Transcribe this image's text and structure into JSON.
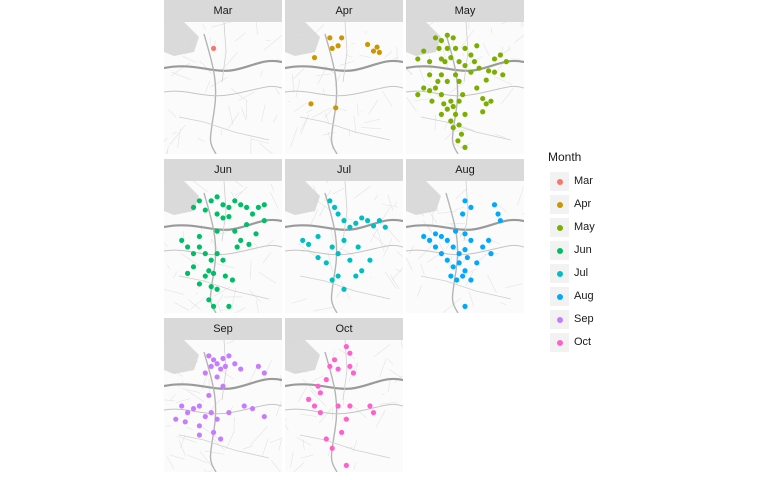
{
  "chart_data": {
    "type": "scatter",
    "facet_variable": "Month",
    "legend": {
      "title": "Month",
      "position": "right",
      "items": [
        {
          "label": "Mar",
          "color": "#F8766D"
        },
        {
          "label": "Apr",
          "color": "#CD9600"
        },
        {
          "label": "May",
          "color": "#7CAE00"
        },
        {
          "label": "Jun",
          "color": "#00BE67"
        },
        {
          "label": "Jul",
          "color": "#00BFC4"
        },
        {
          "label": "Aug",
          "color": "#00A9FF"
        },
        {
          "label": "Sep",
          "color": "#C77CFF"
        },
        {
          "label": "Oct",
          "color": "#FF61CC"
        }
      ]
    },
    "basemap": "grayscale street map",
    "facets": [
      {
        "label": "Mar",
        "color": "#F8766D",
        "points": [
          [
            0.42,
            0.2
          ]
        ]
      },
      {
        "label": "Apr",
        "color": "#CD9600",
        "points": [
          [
            0.38,
            0.12
          ],
          [
            0.48,
            0.12
          ],
          [
            0.4,
            0.2
          ],
          [
            0.45,
            0.18
          ],
          [
            0.7,
            0.17
          ],
          [
            0.75,
            0.22
          ],
          [
            0.78,
            0.19
          ],
          [
            0.8,
            0.23
          ],
          [
            0.25,
            0.27
          ],
          [
            0.22,
            0.62
          ],
          [
            0.43,
            0.65
          ]
        ]
      },
      {
        "label": "May",
        "color": "#7CAE00",
        "points": [
          [
            0.25,
            0.12
          ],
          [
            0.3,
            0.14
          ],
          [
            0.35,
            0.1
          ],
          [
            0.4,
            0.12
          ],
          [
            0.28,
            0.2
          ],
          [
            0.35,
            0.2
          ],
          [
            0.42,
            0.2
          ],
          [
            0.3,
            0.28
          ],
          [
            0.38,
            0.27
          ],
          [
            0.2,
            0.3
          ],
          [
            0.1,
            0.28
          ],
          [
            0.45,
            0.3
          ],
          [
            0.5,
            0.33
          ],
          [
            0.55,
            0.38
          ],
          [
            0.62,
            0.35
          ],
          [
            0.7,
            0.37
          ],
          [
            0.75,
            0.38
          ],
          [
            0.68,
            0.44
          ],
          [
            0.82,
            0.4
          ],
          [
            0.85,
            0.3
          ],
          [
            0.8,
            0.25
          ],
          [
            0.75,
            0.28
          ],
          [
            0.5,
            0.2
          ],
          [
            0.55,
            0.25
          ],
          [
            0.6,
            0.18
          ],
          [
            0.15,
            0.5
          ],
          [
            0.2,
            0.52
          ],
          [
            0.25,
            0.5
          ],
          [
            0.3,
            0.55
          ],
          [
            0.32,
            0.62
          ],
          [
            0.35,
            0.66
          ],
          [
            0.4,
            0.64
          ],
          [
            0.42,
            0.7
          ],
          [
            0.38,
            0.75
          ],
          [
            0.4,
            0.8
          ],
          [
            0.45,
            0.78
          ],
          [
            0.47,
            0.85
          ],
          [
            0.44,
            0.9
          ],
          [
            0.5,
            0.95
          ],
          [
            0.5,
            0.7
          ],
          [
            0.3,
            0.7
          ],
          [
            0.22,
            0.6
          ],
          [
            0.38,
            0.6
          ],
          [
            0.45,
            0.6
          ],
          [
            0.1,
            0.55
          ],
          [
            0.35,
            0.45
          ],
          [
            0.45,
            0.45
          ],
          [
            0.6,
            0.5
          ],
          [
            0.65,
            0.58
          ],
          [
            0.65,
            0.68
          ],
          [
            0.68,
            0.62
          ],
          [
            0.72,
            0.6
          ],
          [
            0.58,
            0.3
          ],
          [
            0.15,
            0.22
          ],
          [
            0.2,
            0.4
          ],
          [
            0.3,
            0.4
          ],
          [
            0.42,
            0.4
          ],
          [
            0.33,
            0.3
          ],
          [
            0.27,
            0.45
          ],
          [
            0.48,
            0.55
          ]
        ]
      },
      {
        "label": "Jun",
        "color": "#00BE67",
        "points": [
          [
            0.4,
            0.15
          ],
          [
            0.45,
            0.12
          ],
          [
            0.5,
            0.18
          ],
          [
            0.55,
            0.2
          ],
          [
            0.6,
            0.15
          ],
          [
            0.65,
            0.18
          ],
          [
            0.7,
            0.2
          ],
          [
            0.75,
            0.25
          ],
          [
            0.8,
            0.2
          ],
          [
            0.85,
            0.18
          ],
          [
            0.55,
            0.27
          ],
          [
            0.5,
            0.28
          ],
          [
            0.45,
            0.25
          ],
          [
            0.25,
            0.2
          ],
          [
            0.3,
            0.15
          ],
          [
            0.35,
            0.22
          ],
          [
            0.2,
            0.5
          ],
          [
            0.25,
            0.55
          ],
          [
            0.3,
            0.5
          ],
          [
            0.35,
            0.55
          ],
          [
            0.4,
            0.6
          ],
          [
            0.45,
            0.55
          ],
          [
            0.5,
            0.6
          ],
          [
            0.38,
            0.68
          ],
          [
            0.42,
            0.7
          ],
          [
            0.35,
            0.72
          ],
          [
            0.3,
            0.78
          ],
          [
            0.4,
            0.8
          ],
          [
            0.45,
            0.82
          ],
          [
            0.38,
            0.9
          ],
          [
            0.42,
            0.95
          ],
          [
            0.55,
            0.95
          ],
          [
            0.62,
            0.5
          ],
          [
            0.65,
            0.45
          ],
          [
            0.72,
            0.48
          ],
          [
            0.78,
            0.4
          ],
          [
            0.2,
            0.7
          ],
          [
            0.25,
            0.65
          ],
          [
            0.15,
            0.45
          ],
          [
            0.6,
            0.38
          ],
          [
            0.7,
            0.33
          ],
          [
            0.58,
            0.75
          ],
          [
            0.52,
            0.72
          ],
          [
            0.3,
            0.42
          ],
          [
            0.45,
            0.38
          ],
          [
            0.85,
            0.3
          ]
        ]
      },
      {
        "label": "Jul",
        "color": "#00BFC4",
        "points": [
          [
            0.38,
            0.15
          ],
          [
            0.42,
            0.2
          ],
          [
            0.45,
            0.25
          ],
          [
            0.5,
            0.3
          ],
          [
            0.55,
            0.35
          ],
          [
            0.6,
            0.32
          ],
          [
            0.65,
            0.28
          ],
          [
            0.7,
            0.3
          ],
          [
            0.75,
            0.34
          ],
          [
            0.8,
            0.3
          ],
          [
            0.85,
            0.35
          ],
          [
            0.15,
            0.45
          ],
          [
            0.2,
            0.48
          ],
          [
            0.28,
            0.42
          ],
          [
            0.4,
            0.5
          ],
          [
            0.45,
            0.55
          ],
          [
            0.55,
            0.6
          ],
          [
            0.35,
            0.62
          ],
          [
            0.4,
            0.75
          ],
          [
            0.45,
            0.72
          ],
          [
            0.6,
            0.72
          ],
          [
            0.65,
            0.68
          ],
          [
            0.72,
            0.6
          ],
          [
            0.5,
            0.82
          ],
          [
            0.28,
            0.58
          ],
          [
            0.62,
            0.5
          ],
          [
            0.5,
            0.45
          ]
        ]
      },
      {
        "label": "Aug",
        "color": "#00A9FF",
        "points": [
          [
            0.5,
            0.15
          ],
          [
            0.55,
            0.2
          ],
          [
            0.48,
            0.25
          ],
          [
            0.75,
            0.18
          ],
          [
            0.78,
            0.25
          ],
          [
            0.8,
            0.3
          ],
          [
            0.25,
            0.4
          ],
          [
            0.3,
            0.42
          ],
          [
            0.35,
            0.45
          ],
          [
            0.4,
            0.5
          ],
          [
            0.45,
            0.55
          ],
          [
            0.5,
            0.52
          ],
          [
            0.25,
            0.5
          ],
          [
            0.3,
            0.55
          ],
          [
            0.35,
            0.6
          ],
          [
            0.4,
            0.65
          ],
          [
            0.45,
            0.62
          ],
          [
            0.5,
            0.68
          ],
          [
            0.38,
            0.72
          ],
          [
            0.43,
            0.75
          ],
          [
            0.48,
            0.72
          ],
          [
            0.55,
            0.75
          ],
          [
            0.55,
            0.45
          ],
          [
            0.65,
            0.5
          ],
          [
            0.7,
            0.45
          ],
          [
            0.72,
            0.55
          ],
          [
            0.2,
            0.45
          ],
          [
            0.15,
            0.42
          ],
          [
            0.52,
            0.58
          ],
          [
            0.42,
            0.38
          ],
          [
            0.5,
            0.4
          ],
          [
            0.6,
            0.62
          ],
          [
            0.5,
            0.95
          ]
        ]
      },
      {
        "label": "Sep",
        "color": "#C77CFF",
        "points": [
          [
            0.38,
            0.12
          ],
          [
            0.42,
            0.15
          ],
          [
            0.45,
            0.18
          ],
          [
            0.5,
            0.14
          ],
          [
            0.55,
            0.12
          ],
          [
            0.4,
            0.2
          ],
          [
            0.48,
            0.22
          ],
          [
            0.52,
            0.2
          ],
          [
            0.35,
            0.25
          ],
          [
            0.45,
            0.28
          ],
          [
            0.6,
            0.18
          ],
          [
            0.65,
            0.22
          ],
          [
            0.8,
            0.2
          ],
          [
            0.85,
            0.25
          ],
          [
            0.15,
            0.5
          ],
          [
            0.2,
            0.55
          ],
          [
            0.25,
            0.52
          ],
          [
            0.3,
            0.5
          ],
          [
            0.35,
            0.58
          ],
          [
            0.18,
            0.62
          ],
          [
            0.3,
            0.65
          ],
          [
            0.4,
            0.55
          ],
          [
            0.45,
            0.6
          ],
          [
            0.42,
            0.7
          ],
          [
            0.48,
            0.75
          ],
          [
            0.3,
            0.72
          ],
          [
            0.68,
            0.5
          ],
          [
            0.75,
            0.52
          ],
          [
            0.85,
            0.58
          ],
          [
            0.55,
            0.55
          ],
          [
            0.1,
            0.6
          ],
          [
            0.5,
            0.35
          ],
          [
            0.38,
            0.42
          ]
        ]
      },
      {
        "label": "Oct",
        "color": "#FF61CC",
        "points": [
          [
            0.52,
            0.05
          ],
          [
            0.55,
            0.1
          ],
          [
            0.42,
            0.15
          ],
          [
            0.38,
            0.2
          ],
          [
            0.45,
            0.22
          ],
          [
            0.35,
            0.3
          ],
          [
            0.28,
            0.35
          ],
          [
            0.3,
            0.4
          ],
          [
            0.25,
            0.5
          ],
          [
            0.3,
            0.55
          ],
          [
            0.55,
            0.2
          ],
          [
            0.58,
            0.25
          ],
          [
            0.45,
            0.5
          ],
          [
            0.55,
            0.5
          ],
          [
            0.52,
            0.6
          ],
          [
            0.48,
            0.7
          ],
          [
            0.35,
            0.75
          ],
          [
            0.4,
            0.82
          ],
          [
            0.72,
            0.5
          ],
          [
            0.75,
            0.55
          ],
          [
            0.52,
            0.95
          ],
          [
            0.2,
            0.45
          ]
        ]
      }
    ]
  }
}
